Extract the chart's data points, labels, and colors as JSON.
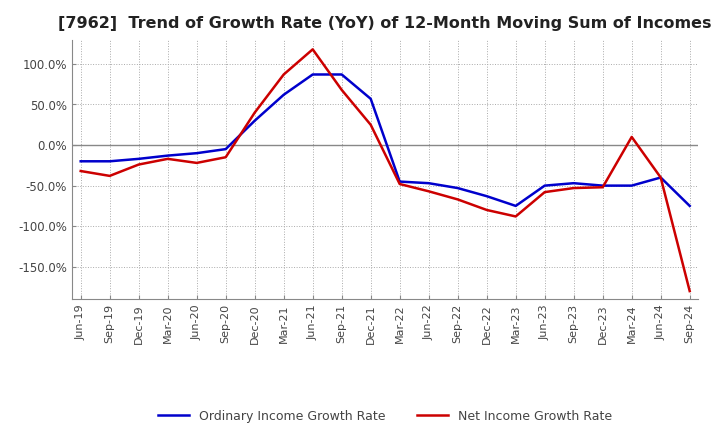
{
  "title": "[7962]  Trend of Growth Rate (YoY) of 12-Month Moving Sum of Incomes",
  "title_fontsize": 11.5,
  "ylim": [
    -190,
    130
  ],
  "yticks": [
    -150,
    -100,
    -50,
    0,
    50,
    100
  ],
  "ytick_labels": [
    "-150.0%",
    "-100.0%",
    "-50.0%",
    "0.0%",
    "50.0%",
    "100.0%"
  ],
  "background_color": "#ffffff",
  "grid_color": "#aaaaaa",
  "legend_labels": [
    "Ordinary Income Growth Rate",
    "Net Income Growth Rate"
  ],
  "legend_colors": [
    "#0000cc",
    "#cc0000"
  ],
  "dates": [
    "Jun-19",
    "Sep-19",
    "Dec-19",
    "Mar-20",
    "Jun-20",
    "Sep-20",
    "Dec-20",
    "Mar-21",
    "Jun-21",
    "Sep-21",
    "Dec-21",
    "Mar-22",
    "Jun-22",
    "Sep-22",
    "Dec-22",
    "Mar-23",
    "Jun-23",
    "Sep-23",
    "Dec-23",
    "Mar-24",
    "Jun-24",
    "Sep-24"
  ],
  "ordinary_income": [
    -20,
    -20,
    -17,
    -13,
    -10,
    -5,
    30,
    62,
    87,
    87,
    57,
    -45,
    -47,
    -53,
    -63,
    -75,
    -50,
    -47,
    -50,
    -50,
    -40,
    -75
  ],
  "net_income": [
    -32,
    -38,
    -24,
    -17,
    -22,
    -15,
    40,
    87,
    118,
    68,
    25,
    -48,
    -57,
    -67,
    -80,
    -88,
    -58,
    -53,
    -52,
    10,
    -40,
    -180
  ]
}
